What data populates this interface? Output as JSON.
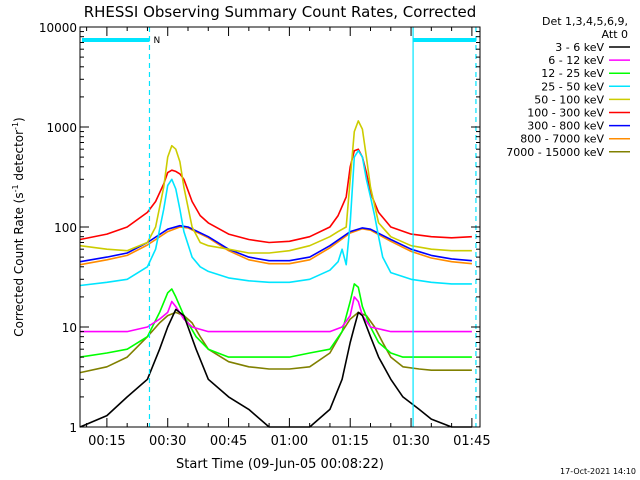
{
  "chart_data": {
    "type": "line",
    "title": "RHESSI Observing Summary Count Rates, Corrected",
    "xlabel": "Start Time (09-Jun-05 00:08:22)",
    "ylabel_main": "Corrected Count Rate (s",
    "ylabel_sup1": "-1",
    "ylabel_mid": " detector",
    "ylabel_sup2": "-1",
    "ylabel_end": ")",
    "x_unit": "minutes after 00:00 UT",
    "xlim": [
      8.37,
      107
    ],
    "ylim": [
      1,
      10000
    ],
    "y_scale": "log",
    "x_ticks": [
      {
        "value": 15,
        "label": "00:15"
      },
      {
        "value": 30,
        "label": "00:30"
      },
      {
        "value": 45,
        "label": "00:45"
      },
      {
        "value": 60,
        "label": "01:00"
      },
      {
        "value": 75,
        "label": "01:15"
      },
      {
        "value": 90,
        "label": "01:30"
      },
      {
        "value": 105,
        "label": "01:45"
      }
    ],
    "y_ticks": [
      {
        "value": 1,
        "label": "1"
      },
      {
        "value": 10,
        "label": "10"
      },
      {
        "value": 100,
        "label": "100"
      },
      {
        "value": 1000,
        "label": "1000"
      },
      {
        "value": 10000,
        "label": "10000"
      }
    ],
    "legend_header": [
      "Det 1,3,4,5,6,9,",
      "Att 0"
    ],
    "legend_position": "outside-right",
    "series": [
      {
        "name": "3 - 6 keV",
        "color": "#000000",
        "x": [
          8.4,
          15,
          20,
          25,
          28,
          30,
          32,
          34,
          37,
          40,
          45,
          50,
          55,
          60,
          65,
          70,
          73,
          75,
          76,
          77,
          78,
          80,
          82,
          85,
          88,
          92,
          95,
          100,
          105
        ],
        "y": [
          1,
          1.3,
          2,
          3,
          6,
          10,
          15,
          13,
          6,
          3,
          2,
          1.5,
          1,
          1,
          1,
          1.5,
          3,
          7,
          10,
          14,
          13,
          8,
          5,
          3,
          2,
          1.5,
          1.2,
          1,
          1
        ]
      },
      {
        "name": "6 - 12 keV",
        "color": "#ff00ff",
        "x": [
          8.4,
          20,
          25,
          28,
          30,
          31,
          32,
          34,
          36,
          40,
          50,
          60,
          70,
          73,
          75,
          76,
          77,
          78,
          80,
          85,
          95,
          105
        ],
        "y": [
          9,
          9,
          10,
          12,
          14,
          18,
          16,
          12,
          10,
          9,
          9,
          9,
          9,
          10,
          13,
          20,
          18,
          13,
          10,
          9,
          9,
          9
        ]
      },
      {
        "name": "12 - 25 keV",
        "color": "#00ff00",
        "x": [
          8.4,
          15,
          20,
          25,
          28,
          30,
          31,
          32,
          34,
          37,
          40,
          45,
          50,
          55,
          60,
          65,
          70,
          73,
          75,
          76,
          77,
          78,
          80,
          82,
          85,
          88,
          92,
          95,
          100,
          105
        ],
        "y": [
          5,
          5.5,
          6,
          8,
          14,
          22,
          24,
          20,
          13,
          8,
          6,
          5,
          5,
          5,
          5,
          5.5,
          6,
          9,
          18,
          27,
          25,
          16,
          10,
          7,
          5.5,
          5,
          5,
          5,
          5,
          5
        ]
      },
      {
        "name": "25 - 50 keV",
        "color": "#00e5ff",
        "x": [
          8.4,
          15,
          20,
          25,
          27,
          29,
          30,
          31,
          32,
          33,
          34,
          36,
          38,
          40,
          45,
          50,
          55,
          60,
          65,
          70,
          72,
          73,
          74,
          75,
          76,
          77,
          78,
          79,
          80,
          81,
          82,
          83,
          85,
          90,
          95,
          100,
          105
        ],
        "y": [
          26,
          28,
          30,
          40,
          60,
          150,
          260,
          300,
          240,
          150,
          90,
          50,
          40,
          36,
          31,
          29,
          28,
          28,
          30,
          37,
          45,
          60,
          42,
          110,
          500,
          580,
          500,
          300,
          200,
          130,
          80,
          50,
          35,
          30,
          28,
          27,
          27
        ]
      },
      {
        "name": "50 - 100 keV",
        "color": "#cccc00",
        "x": [
          8.4,
          15,
          20,
          25,
          27,
          29,
          30,
          31,
          32,
          33,
          34,
          36,
          38,
          40,
          45,
          50,
          55,
          60,
          65,
          70,
          72,
          74,
          75,
          76,
          77,
          78,
          79,
          80,
          82,
          85,
          90,
          95,
          100,
          105
        ],
        "y": [
          65,
          60,
          58,
          70,
          100,
          250,
          500,
          650,
          600,
          450,
          250,
          100,
          70,
          65,
          60,
          55,
          55,
          58,
          65,
          80,
          90,
          100,
          300,
          900,
          1150,
          950,
          500,
          250,
          110,
          80,
          65,
          60,
          58,
          58
        ]
      },
      {
        "name": "100 - 300 keV",
        "color": "#ff0000",
        "x": [
          8.4,
          15,
          20,
          25,
          27,
          29,
          30,
          31,
          32,
          33,
          34,
          36,
          38,
          40,
          45,
          50,
          55,
          60,
          65,
          70,
          72,
          74,
          75,
          76,
          77,
          78,
          79,
          80,
          82,
          85,
          90,
          95,
          100,
          105
        ],
        "y": [
          75,
          85,
          100,
          140,
          180,
          270,
          350,
          370,
          360,
          340,
          300,
          180,
          130,
          110,
          85,
          75,
          70,
          72,
          80,
          100,
          130,
          200,
          400,
          580,
          600,
          500,
          350,
          220,
          140,
          100,
          85,
          80,
          78,
          80
        ]
      },
      {
        "name": "300 - 800 keV",
        "color": "#0000ff",
        "x": [
          8.4,
          15,
          20,
          25,
          30,
          33,
          35,
          40,
          45,
          50,
          55,
          60,
          65,
          70,
          75,
          78,
          80,
          85,
          90,
          95,
          100,
          105
        ],
        "y": [
          45,
          50,
          55,
          70,
          95,
          103,
          100,
          80,
          60,
          50,
          46,
          46,
          50,
          65,
          90,
          98,
          95,
          75,
          60,
          52,
          48,
          46
        ]
      },
      {
        "name": "800 - 7000 keV",
        "color": "#ff8c00",
        "x": [
          8.4,
          15,
          20,
          25,
          30,
          33,
          35,
          40,
          45,
          50,
          55,
          60,
          65,
          70,
          75,
          78,
          80,
          85,
          90,
          95,
          100,
          105
        ],
        "y": [
          42,
          47,
          52,
          66,
          90,
          100,
          98,
          78,
          58,
          47,
          43,
          43,
          47,
          62,
          87,
          96,
          93,
          72,
          57,
          49,
          45,
          43
        ]
      },
      {
        "name": "7000 - 15000 keV",
        "color": "#808000",
        "x": [
          8.4,
          15,
          20,
          25,
          28,
          30,
          32,
          34,
          36,
          38,
          40,
          45,
          50,
          55,
          60,
          65,
          70,
          73,
          75,
          77,
          79,
          81,
          83,
          85,
          88,
          92,
          95,
          100,
          105
        ],
        "y": [
          3.5,
          4,
          5,
          8,
          11,
          13,
          14,
          13,
          11,
          8,
          6,
          4.5,
          4,
          3.8,
          3.8,
          4,
          5.5,
          9,
          12,
          14,
          13,
          10,
          7,
          5,
          4,
          3.8,
          3.7,
          3.7,
          3.7
        ]
      }
    ],
    "vertical_markers": [
      {
        "x": 25.5,
        "style": "dashed",
        "label": "N"
      },
      {
        "x": 90.5,
        "style": "solid",
        "label": ""
      },
      {
        "x": 106,
        "style": "dashed",
        "label": ""
      }
    ],
    "footer_date": "17-Oct-2021 14:10"
  }
}
